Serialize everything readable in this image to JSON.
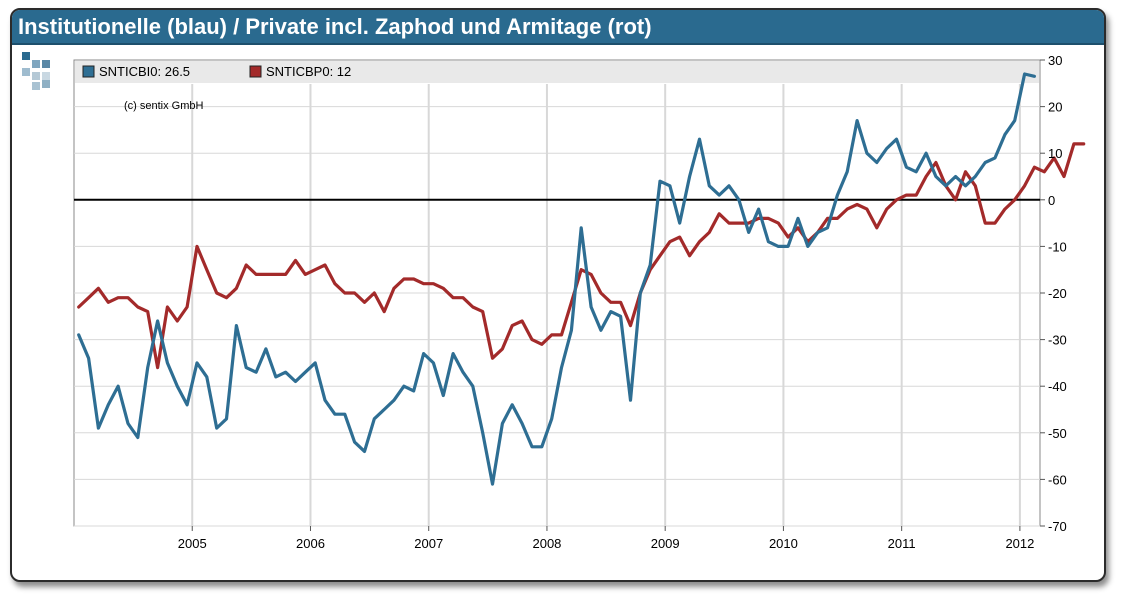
{
  "header": {
    "title": "Institutionelle (blau) / Private incl. Zaphod und Armitage (rot)"
  },
  "copyright": "(c) sentix GmbH",
  "colors": {
    "title_bg": "#2a6a8f",
    "series_blue": "#2e6e93",
    "series_red": "#a32a2a",
    "grid": "#d8d8d8",
    "legend_bg": "#e9e9e9"
  },
  "chart_data": {
    "type": "line",
    "title": "Institutionelle (blau) / Private incl. Zaphod und Armitage (rot)",
    "xlabel": "",
    "ylabel": "",
    "xlim": [
      2004.0,
      2012.17
    ],
    "ylim": [
      -70,
      30
    ],
    "y_ticks": [
      30,
      20,
      10,
      0,
      -10,
      -20,
      -30,
      -40,
      -50,
      -60,
      -70
    ],
    "y_tick_labels": [
      "30",
      "20",
      "10",
      "0",
      "-10",
      "-20",
      "-30",
      "-40",
      "-50",
      "-60",
      "-70"
    ],
    "x_ticks": [
      2005,
      2006,
      2007,
      2008,
      2009,
      2010,
      2011,
      2012
    ],
    "x_tick_labels": [
      "2005",
      "2006",
      "2007",
      "2008",
      "2009",
      "2010",
      "2011",
      "2012"
    ],
    "zero_line": 0,
    "grid": true,
    "legend_position": "top",
    "x_start": 2004.04,
    "x_step": 0.08333,
    "series": [
      {
        "name": "SNTICBI0",
        "legend": "SNTICBI0: 26.5",
        "color": "#2e6e93",
        "values": [
          -29,
          -34,
          -49,
          -44,
          -40,
          -48,
          -51,
          -36,
          -26,
          -35,
          -40,
          -44,
          -35,
          -38,
          -49,
          -47,
          -27,
          -36,
          -37,
          -32,
          -38,
          -37,
          -39,
          -37,
          -35,
          -43,
          -46,
          -46,
          -52,
          -54,
          -47,
          -45,
          -43,
          -40,
          -41,
          -33,
          -35,
          -42,
          -33,
          -37,
          -40,
          -50,
          -61,
          -48,
          -44,
          -48,
          -53,
          -53,
          -47,
          -36,
          -28,
          -6,
          -23,
          -28,
          -24,
          -25,
          -43,
          -20,
          -14,
          4,
          3,
          -5,
          5,
          13,
          3,
          1,
          3,
          0,
          -7,
          -2,
          -9,
          -10,
          -10,
          -4,
          -10,
          -7,
          -6,
          1,
          6,
          17,
          10,
          8,
          11,
          13,
          7,
          6,
          10,
          5,
          3,
          5,
          3,
          5,
          8,
          9,
          14,
          17,
          27,
          26.5
        ]
      },
      {
        "name": "SNTICBP0",
        "legend": "SNTICBP0: 12",
        "color": "#a32a2a",
        "values": [
          -23,
          -21,
          -19,
          -22,
          -21,
          -21,
          -23,
          -24,
          -36,
          -23,
          -26,
          -23,
          -10,
          -15,
          -20,
          -21,
          -19,
          -14,
          -16,
          -16,
          -16,
          -16,
          -13,
          -16,
          -15,
          -14,
          -18,
          -20,
          -20,
          -22,
          -20,
          -24,
          -19,
          -17,
          -17,
          -18,
          -18,
          -19,
          -21,
          -21,
          -23,
          -24,
          -34,
          -32,
          -27,
          -26,
          -30,
          -31,
          -29,
          -29,
          -22,
          -15,
          -16,
          -20,
          -22,
          -22,
          -27,
          -20,
          -15,
          -12,
          -9,
          -8,
          -12,
          -9,
          -7,
          -3,
          -5,
          -5,
          -5,
          -4,
          -4,
          -5,
          -8,
          -6,
          -9,
          -7,
          -4,
          -4,
          -2,
          -1,
          -2,
          -6,
          -2,
          0,
          1,
          1,
          5,
          8,
          3,
          0,
          6,
          3,
          -5,
          -5,
          -2,
          0,
          3,
          7,
          6,
          9,
          5,
          12,
          12
        ]
      }
    ]
  }
}
